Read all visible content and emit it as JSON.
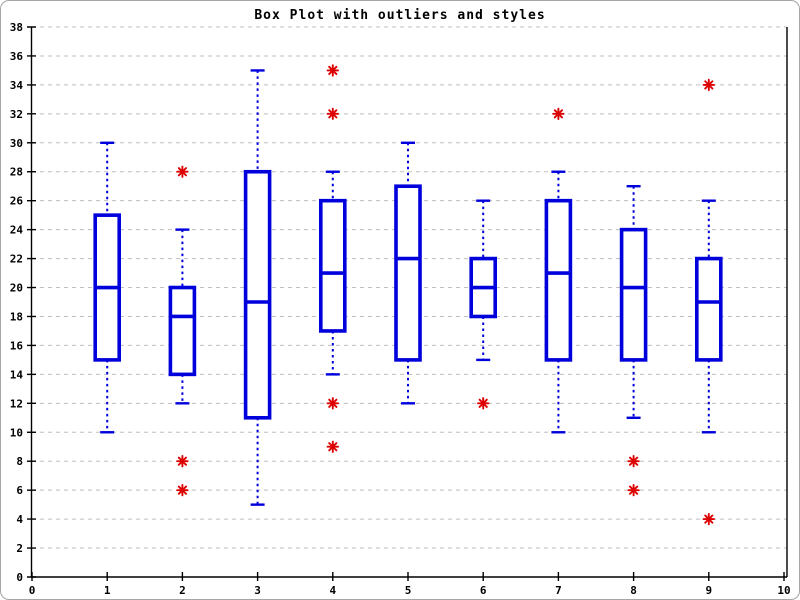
{
  "title": "Box Plot with outliers and styles",
  "colors": {
    "box": "#0000dd",
    "whisker": "#0000dd",
    "median": "#0000dd",
    "outlier": "#dd0000",
    "grid": "#bfbfbf",
    "axis": "#000000",
    "background": "#ffffff",
    "frame_border": "#a6a6a6"
  },
  "chart_data": {
    "type": "boxplot",
    "title": "Box Plot with outliers and styles",
    "xlabel": "",
    "ylabel": "",
    "xlim": [
      0,
      10
    ],
    "ylim": [
      0,
      38
    ],
    "x_ticks": [
      0,
      1,
      2,
      3,
      4,
      5,
      6,
      7,
      8,
      9,
      10
    ],
    "y_ticks": [
      0,
      2,
      4,
      6,
      8,
      10,
      12,
      14,
      16,
      18,
      20,
      22,
      24,
      26,
      28,
      30,
      32,
      34,
      36,
      38
    ],
    "grid": "horizontal-dashed",
    "legend": "none",
    "boxes": [
      {
        "x": 1,
        "whisker_low": 10,
        "q1": 15,
        "median": 20,
        "q3": 25,
        "whisker_high": 30,
        "outliers": []
      },
      {
        "x": 2,
        "whisker_low": 12,
        "q1": 14,
        "median": 18,
        "q3": 20,
        "whisker_high": 24,
        "outliers": [
          28,
          8,
          6
        ]
      },
      {
        "x": 3,
        "whisker_low": 5,
        "q1": 11,
        "median": 19,
        "q3": 28,
        "whisker_high": 35,
        "outliers": []
      },
      {
        "x": 4,
        "whisker_low": 14,
        "q1": 17,
        "median": 21,
        "q3": 26,
        "whisker_high": 28,
        "outliers": [
          35,
          32,
          12,
          9
        ]
      },
      {
        "x": 5,
        "whisker_low": 12,
        "q1": 15,
        "median": 22,
        "q3": 27,
        "whisker_high": 30,
        "outliers": []
      },
      {
        "x": 6,
        "whisker_low": 15,
        "q1": 18,
        "median": 20,
        "q3": 22,
        "whisker_high": 26,
        "outliers": [
          12
        ]
      },
      {
        "x": 7,
        "whisker_low": 10,
        "q1": 15,
        "median": 21,
        "q3": 26,
        "whisker_high": 28,
        "outliers": [
          32
        ]
      },
      {
        "x": 8,
        "whisker_low": 11,
        "q1": 15,
        "median": 20,
        "q3": 24,
        "whisker_high": 27,
        "outliers": [
          8,
          6
        ]
      },
      {
        "x": 9,
        "whisker_low": 10,
        "q1": 15,
        "median": 19,
        "q3": 22,
        "whisker_high": 26,
        "outliers": [
          34,
          4
        ]
      }
    ]
  }
}
